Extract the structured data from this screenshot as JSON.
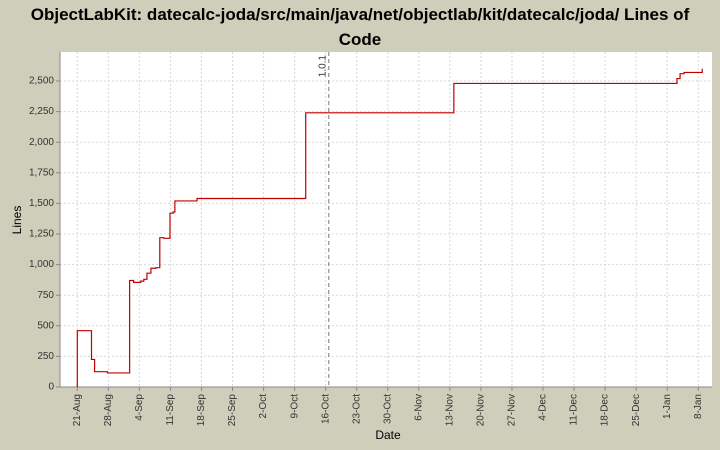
{
  "chart_data": {
    "type": "step-line",
    "title": "ObjectLabKit: datecalc-joda/src/main/java/net/objectlab/kit/datecalc/joda/ Lines of Code",
    "x_label": "Date",
    "y_label": "Lines",
    "series": [
      {
        "name": "Lines",
        "color": "#c00000",
        "x": [
          0,
          0,
          3.2,
          3.9,
          6.8,
          11.8,
          12.7,
          14.3,
          15.0,
          15.7,
          16.6,
          17.7,
          18.6,
          19.5,
          20.9,
          21.6,
          22.0,
          27.0,
          51.5,
          84.9,
          135.2,
          135.9,
          136.8,
          140.9
        ],
        "values": [
          0,
          460,
          225,
          125,
          115,
          870,
          855,
          865,
          880,
          930,
          970,
          975,
          1220,
          1215,
          1420,
          1430,
          1520,
          1540,
          2240,
          2480,
          2520,
          2560,
          2570,
          2600
        ]
      }
    ],
    "xlim": [
      -3.9,
      143.1
    ],
    "xticks": [
      {
        "value": 0,
        "label": "21-Aug"
      },
      {
        "value": 7,
        "label": "28-Aug"
      },
      {
        "value": 14,
        "label": "4-Sep"
      },
      {
        "value": 21,
        "label": "11-Sep"
      },
      {
        "value": 28,
        "label": "18-Sep"
      },
      {
        "value": 35,
        "label": "25-Sep"
      },
      {
        "value": 42,
        "label": "2-Oct"
      },
      {
        "value": 49,
        "label": "9-Oct"
      },
      {
        "value": 56,
        "label": "16-Oct"
      },
      {
        "value": 63,
        "label": "23-Oct"
      },
      {
        "value": 70,
        "label": "30-Oct"
      },
      {
        "value": 77,
        "label": "6-Nov"
      },
      {
        "value": 84,
        "label": "13-Nov"
      },
      {
        "value": 91,
        "label": "20-Nov"
      },
      {
        "value": 98,
        "label": "27-Nov"
      },
      {
        "value": 105,
        "label": "4-Dec"
      },
      {
        "value": 112,
        "label": "11-Dec"
      },
      {
        "value": 119,
        "label": "18-Dec"
      },
      {
        "value": 126,
        "label": "25-Dec"
      },
      {
        "value": 133,
        "label": "1-Jan"
      },
      {
        "value": 140,
        "label": "8-Jan"
      }
    ],
    "ylim": [
      0,
      2737
    ],
    "yticks": [
      0,
      250,
      500,
      750,
      {
        "value": 1000,
        "label": "1,000"
      },
      {
        "value": 1250,
        "label": "1,250"
      },
      {
        "value": 1500,
        "label": "1,500"
      },
      {
        "value": 1750,
        "label": "1,750"
      },
      {
        "value": 2000,
        "label": "2,000"
      },
      {
        "value": 2250,
        "label": "2,250"
      },
      {
        "value": 2500,
        "label": "2,500"
      }
    ],
    "grid": true,
    "markers": [
      {
        "x": 56.7,
        "label": "1.0.1"
      }
    ]
  }
}
